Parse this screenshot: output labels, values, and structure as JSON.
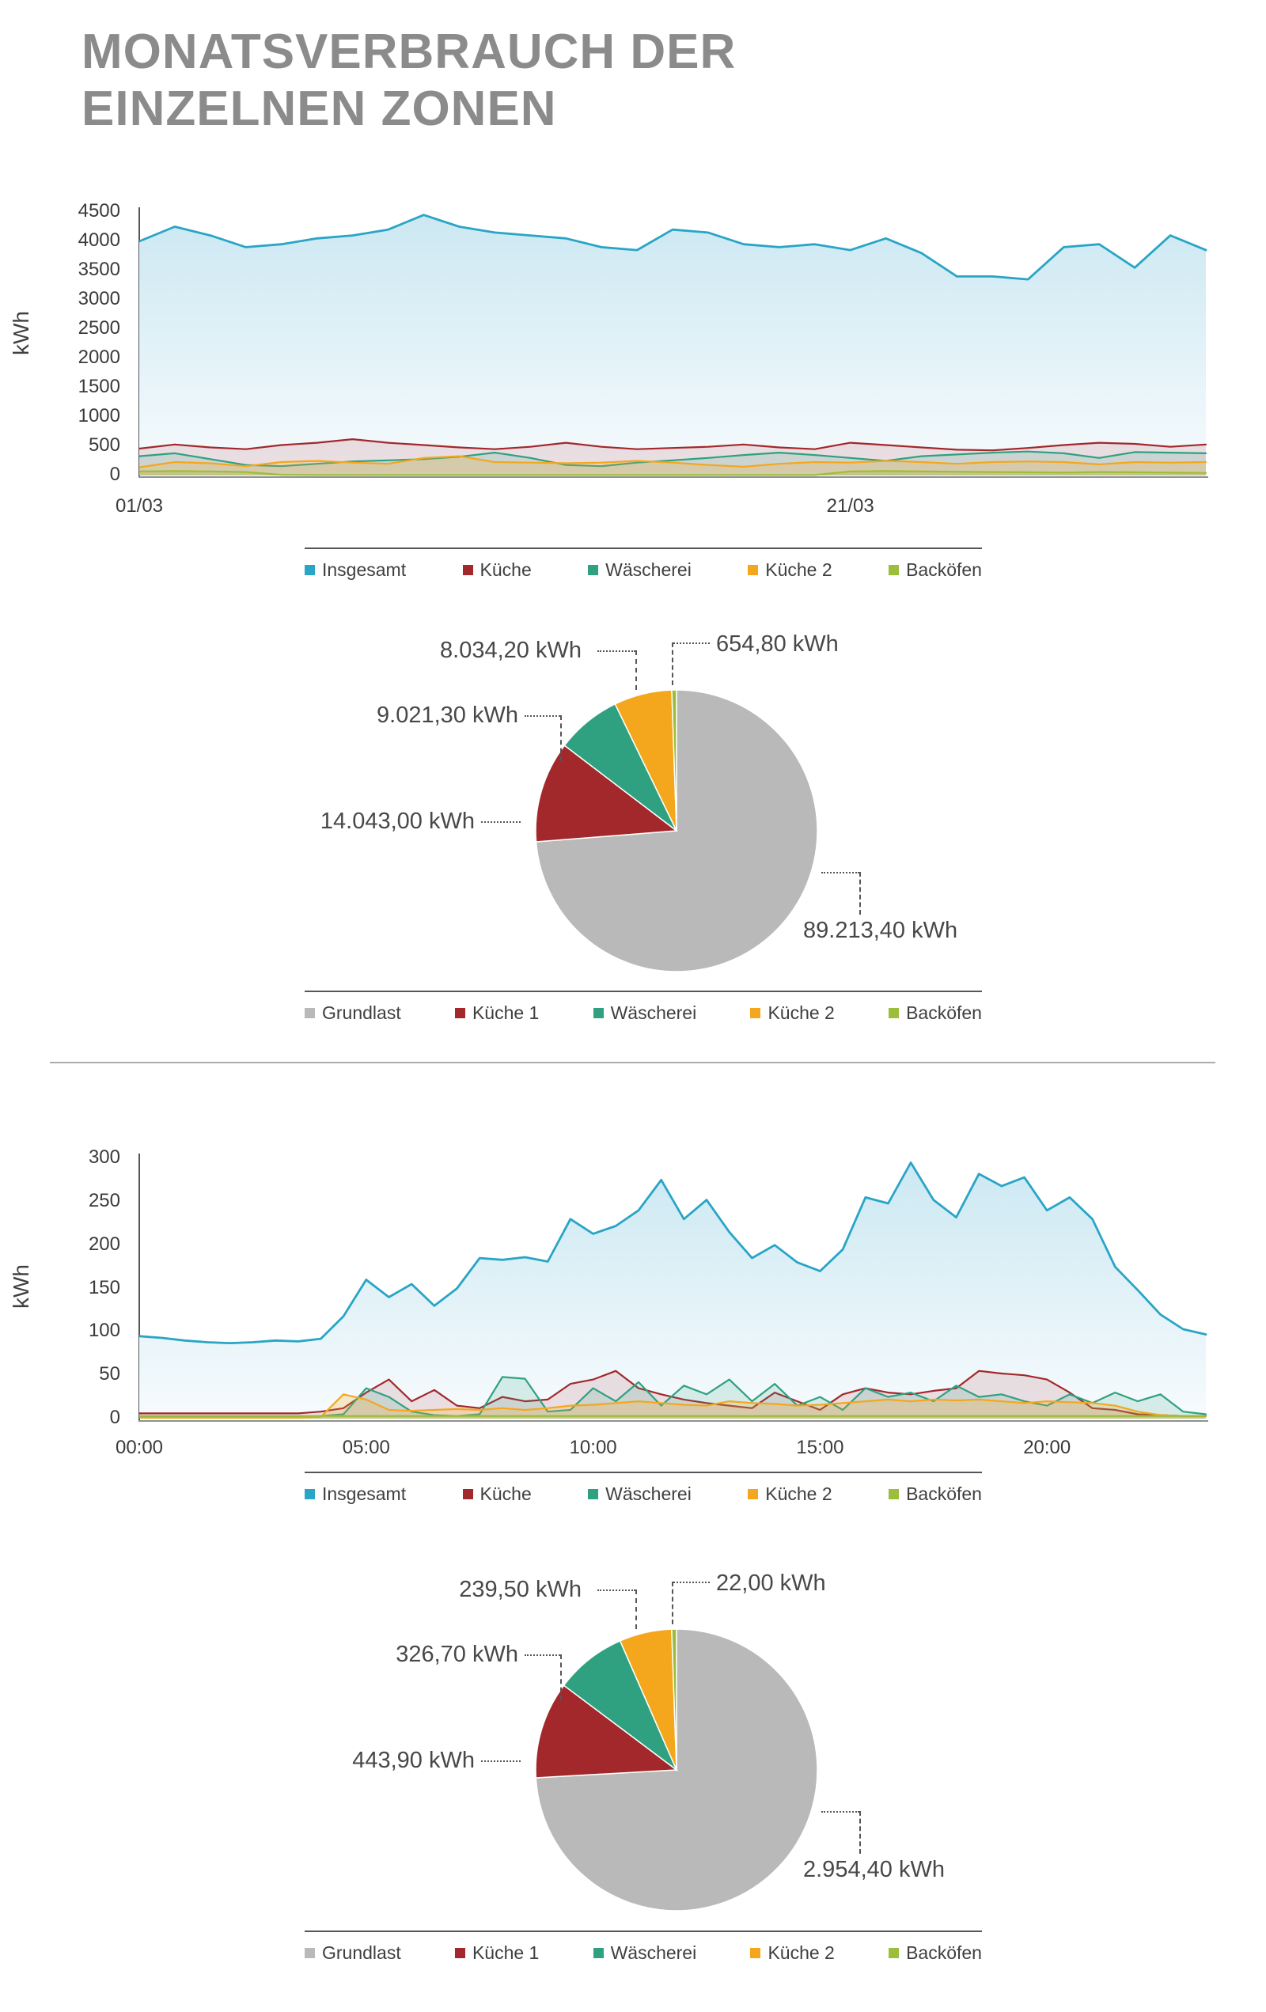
{
  "title": {
    "line1": "MONATSVERBRAUCH DER",
    "line2": "EINZELNEN ZONEN"
  },
  "chart_data": [
    {
      "id": "monthly-area",
      "type": "area",
      "title": "Monatsverbrauch Flächendiagramm",
      "ylabel": "kWh",
      "ylim": [
        0,
        4500
      ],
      "yticks": [
        4500,
        4000,
        3500,
        3000,
        2500,
        2000,
        1500,
        1000,
        500,
        0
      ],
      "x_domain": [
        1,
        31
      ],
      "xticks": [
        {
          "x": 1,
          "label": "01/03"
        },
        {
          "x": 21,
          "label": "21/03"
        }
      ],
      "grid": false,
      "legend_position": "bottom",
      "series": [
        {
          "name": "Insgesamt",
          "color": "#29A5C6",
          "fill_opacity": 1,
          "values": [
            4000,
            4250,
            4100,
            3900,
            3950,
            4050,
            4100,
            4200,
            4450,
            4250,
            4150,
            4100,
            4050,
            3900,
            3850,
            4200,
            4150,
            3950,
            3900,
            3950,
            3850,
            4050,
            3800,
            3400,
            3400,
            3350,
            3900,
            3950,
            3550,
            4100,
            3850
          ]
        },
        {
          "name": "Küche",
          "color": "#A2282B",
          "fill_opacity": 0.13,
          "values": [
            460,
            530,
            480,
            450,
            520,
            560,
            620,
            560,
            520,
            480,
            450,
            490,
            560,
            490,
            450,
            470,
            490,
            530,
            480,
            450,
            560,
            520,
            480,
            440,
            430,
            470,
            520,
            560,
            540,
            490,
            530
          ]
        },
        {
          "name": "Wäscherei",
          "color": "#2FA181",
          "fill_opacity": 0.16,
          "values": [
            330,
            380,
            280,
            180,
            160,
            200,
            240,
            260,
            280,
            320,
            390,
            300,
            180,
            160,
            220,
            260,
            300,
            350,
            390,
            350,
            300,
            250,
            330,
            360,
            390,
            410,
            380,
            300,
            400,
            390,
            380
          ]
        },
        {
          "name": "Küche 2",
          "color": "#F4A71D",
          "fill_opacity": 0.22,
          "values": [
            140,
            230,
            210,
            160,
            230,
            250,
            220,
            200,
            300,
            330,
            230,
            220,
            210,
            220,
            250,
            220,
            180,
            150,
            200,
            230,
            220,
            250,
            230,
            200,
            230,
            240,
            230,
            190,
            230,
            220,
            230
          ]
        },
        {
          "name": "Backöfen",
          "color": "#9CBE3A",
          "fill_opacity": 0.3,
          "values": [
            70,
            75,
            70,
            60,
            12,
            8,
            8,
            8,
            8,
            8,
            8,
            8,
            8,
            8,
            8,
            8,
            8,
            8,
            8,
            8,
            70,
            75,
            70,
            65,
            60,
            55,
            50,
            60,
            55,
            50,
            45
          ]
        }
      ]
    },
    {
      "id": "monthly-pie",
      "type": "pie",
      "title": "Monatsverbrauch Kreisdiagramm",
      "slices": [
        {
          "name": "Grundlast",
          "color": "#B9B9B9",
          "value": 89213.4,
          "label": "89.213,40 kWh"
        },
        {
          "name": "Küche 1",
          "color": "#A2282B",
          "value": 14043.0,
          "label": "14.043,00 kWh"
        },
        {
          "name": "Wäscherei",
          "color": "#2FA181",
          "value": 9021.3,
          "label": "9.021,30 kWh"
        },
        {
          "name": "Küche 2",
          "color": "#F4A71D",
          "value": 8034.2,
          "label": "8.034,20 kWh"
        },
        {
          "name": "Backöfen",
          "color": "#9CBE3A",
          "value": 654.8,
          "label": "654,80 kWh"
        }
      ]
    },
    {
      "id": "daily-area",
      "type": "area",
      "title": "Tagesverbrauch Flächendiagramm",
      "ylabel": "kWh",
      "ylim": [
        0,
        300
      ],
      "yticks": [
        300,
        250,
        200,
        150,
        100,
        50,
        0
      ],
      "x_domain": [
        0,
        23.5
      ],
      "xticks": [
        {
          "x": 0,
          "label": "00:00"
        },
        {
          "x": 5,
          "label": "05:00"
        },
        {
          "x": 10,
          "label": "10:00"
        },
        {
          "x": 15,
          "label": "15:00"
        },
        {
          "x": 20,
          "label": "20:00"
        }
      ],
      "grid": false,
      "legend_position": "bottom",
      "series": [
        {
          "name": "Insgesamt",
          "color": "#29A5C6",
          "fill_opacity": 1,
          "values": [
            95,
            93,
            90,
            88,
            87,
            88,
            90,
            89,
            92,
            118,
            160,
            140,
            155,
            130,
            150,
            185,
            183,
            186,
            181,
            230,
            213,
            222,
            240,
            275,
            230,
            252,
            215,
            185,
            200,
            180,
            170,
            195,
            255,
            248,
            295,
            252,
            232,
            282,
            268,
            278,
            240,
            255,
            230,
            175,
            148,
            120,
            103,
            97
          ]
        },
        {
          "name": "Küche",
          "color": "#A2282B",
          "fill_opacity": 0.13,
          "values": [
            6,
            6,
            6,
            6,
            6,
            6,
            6,
            6,
            8,
            12,
            30,
            45,
            20,
            33,
            15,
            12,
            25,
            20,
            22,
            40,
            45,
            55,
            35,
            28,
            22,
            18,
            15,
            12,
            30,
            20,
            10,
            28,
            35,
            30,
            28,
            32,
            35,
            55,
            52,
            50,
            45,
            30,
            12,
            10,
            5,
            4,
            3,
            3
          ]
        },
        {
          "name": "Wäscherei",
          "color": "#2FA181",
          "fill_opacity": 0.16,
          "values": [
            2,
            2,
            2,
            2,
            2,
            2,
            2,
            2,
            3,
            5,
            35,
            25,
            8,
            4,
            3,
            5,
            48,
            46,
            8,
            10,
            35,
            20,
            42,
            15,
            38,
            28,
            45,
            20,
            40,
            15,
            25,
            10,
            35,
            25,
            30,
            20,
            38,
            25,
            28,
            20,
            15,
            28,
            18,
            30,
            20,
            28,
            8,
            5
          ]
        },
        {
          "name": "Küche 2",
          "color": "#F4A71D",
          "fill_opacity": 0.22,
          "values": [
            1,
            1,
            1,
            1,
            1,
            1,
            1,
            1,
            2,
            28,
            22,
            10,
            9,
            10,
            11,
            10,
            12,
            10,
            12,
            15,
            16,
            18,
            20,
            18,
            16,
            15,
            20,
            18,
            17,
            15,
            16,
            18,
            20,
            22,
            20,
            22,
            21,
            22,
            20,
            18,
            20,
            19,
            18,
            15,
            8,
            4,
            3,
            3
          ]
        },
        {
          "name": "Backöfen",
          "color": "#9CBE3A",
          "fill_opacity": 0.3,
          "values": [
            3,
            3,
            3,
            3,
            3,
            3,
            3,
            3,
            3,
            3,
            3,
            3,
            3,
            3,
            3,
            3,
            3,
            3,
            3,
            3,
            3,
            3,
            3,
            3,
            3,
            3,
            3,
            3,
            3,
            3,
            3,
            3,
            3,
            3,
            3,
            3,
            3,
            3,
            3,
            3,
            3,
            3,
            3,
            3,
            3,
            3,
            3,
            3
          ]
        }
      ]
    },
    {
      "id": "daily-pie",
      "type": "pie",
      "title": "Tagesverbrauch Kreisdiagramm",
      "slices": [
        {
          "name": "Grundlast",
          "color": "#B9B9B9",
          "value": 2954.4,
          "label": "2.954,40 kWh"
        },
        {
          "name": "Küche 1",
          "color": "#A2282B",
          "value": 443.9,
          "label": "443,90 kWh"
        },
        {
          "name": "Wäscherei",
          "color": "#2FA181",
          "value": 326.7,
          "label": "326,70 kWh"
        },
        {
          "name": "Küche 2",
          "color": "#F4A71D",
          "value": 239.5,
          "label": "239,50 kWh"
        },
        {
          "name": "Backöfen",
          "color": "#9CBE3A",
          "value": 22.0,
          "label": "22,00 kWh"
        }
      ]
    }
  ],
  "colors": {
    "title": "#8B8B8B",
    "axis": "#55565B",
    "tick_text": "#3A3A3A",
    "insgesamt": "#29A5C6",
    "kueche": "#A2282B",
    "waescherei": "#2FA181",
    "kueche2": "#F4A71D",
    "backoefen": "#9CBE3A",
    "grundlast": "#B9B9B9"
  }
}
